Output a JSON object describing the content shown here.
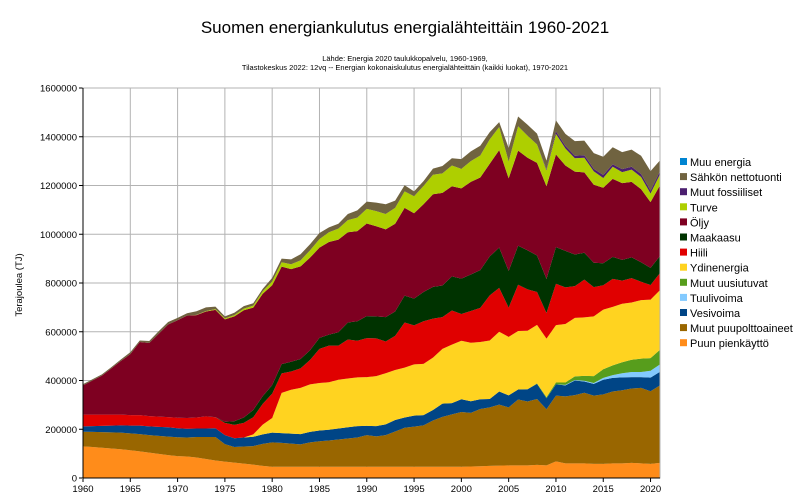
{
  "chart_data": {
    "type": "area",
    "stacked": true,
    "title": "Suomen energiankulutus energialähteittäin 1960-2021",
    "subtitle_lines": [
      "Lähde: Energia 2020 taulukkopalvelu, 1960-1969,",
      "Tilastokeskus 2022: 12vq -- Energian kokonaiskulutus energialähteittäin (kaikki luokat), 1970-2021"
    ],
    "xlabel": "",
    "ylabel": "Terajoulea (TJ)",
    "xlim": [
      1960,
      2021
    ],
    "ylim": [
      0,
      1600000
    ],
    "x_ticks": [
      1960,
      1965,
      1970,
      1975,
      1980,
      1985,
      1990,
      1995,
      2000,
      2005,
      2010,
      2015,
      2020
    ],
    "y_ticks": [
      "0",
      "200000",
      "400000",
      "600000",
      "800000",
      "1000000",
      "1200000",
      "1400000",
      "1600000"
    ],
    "grid": true,
    "legend_position": "right",
    "x": [
      1960,
      1961,
      1962,
      1963,
      1964,
      1965,
      1966,
      1967,
      1968,
      1969,
      1970,
      1971,
      1972,
      1973,
      1974,
      1975,
      1976,
      1977,
      1978,
      1979,
      1980,
      1981,
      1982,
      1983,
      1984,
      1985,
      1986,
      1987,
      1988,
      1989,
      1990,
      1991,
      1992,
      1993,
      1994,
      1995,
      1996,
      1997,
      1998,
      1999,
      2000,
      2001,
      2002,
      2003,
      2004,
      2005,
      2006,
      2007,
      2008,
      2009,
      2010,
      2011,
      2012,
      2013,
      2014,
      2015,
      2016,
      2017,
      2018,
      2019,
      2020,
      2021
    ],
    "series": [
      {
        "name": "Puun pienkäyttö",
        "color": "#ff8c1a",
        "values": [
          130000,
          127000,
          124000,
          121000,
          118000,
          114000,
          109000,
          104000,
          99000,
          94000,
          90000,
          88000,
          84000,
          78000,
          72000,
          67000,
          63000,
          59000,
          55000,
          50000,
          46000,
          46000,
          46000,
          46000,
          46000,
          46000,
          46000,
          46000,
          46000,
          46000,
          46000,
          46000,
          46000,
          46000,
          46000,
          46000,
          46000,
          46000,
          46000,
          46000,
          46000,
          47000,
          48000,
          50000,
          51000,
          52000,
          52000,
          52000,
          54000,
          52000,
          68000,
          60000,
          60000,
          60000,
          58000,
          58000,
          60000,
          60000,
          62000,
          60000,
          58000,
          62000
        ]
      },
      {
        "name": "Muut puupolttoaineet",
        "color": "#996600",
        "values": [
          60000,
          62000,
          64000,
          66000,
          68000,
          69000,
          71000,
          72000,
          74000,
          76000,
          77000,
          78000,
          84000,
          90000,
          96000,
          72000,
          64000,
          70000,
          76000,
          90000,
          100000,
          98000,
          95000,
          92000,
          100000,
          105000,
          108000,
          112000,
          116000,
          120000,
          130000,
          125000,
          130000,
          145000,
          160000,
          165000,
          170000,
          190000,
          205000,
          215000,
          225000,
          220000,
          235000,
          240000,
          250000,
          238000,
          270000,
          262000,
          270000,
          230000,
          270000,
          275000,
          280000,
          290000,
          280000,
          285000,
          295000,
          300000,
          305000,
          310000,
          298000,
          318000
        ]
      },
      {
        "name": "Vesivoima",
        "color": "#004586",
        "values": [
          22000,
          24000,
          26000,
          28000,
          30000,
          32000,
          35000,
          36000,
          37000,
          38000,
          37000,
          36000,
          35000,
          35000,
          36000,
          37000,
          36000,
          37000,
          38000,
          39000,
          40000,
          40000,
          41000,
          42000,
          43000,
          44000,
          44000,
          45000,
          46000,
          47000,
          38000,
          42000,
          44000,
          47000,
          42000,
          45000,
          42000,
          43000,
          54000,
          46000,
          52000,
          48000,
          40000,
          34000,
          54000,
          49000,
          41000,
          50000,
          62000,
          45000,
          46000,
          45000,
          60000,
          46000,
          48000,
          60000,
          56000,
          53000,
          47000,
          44000,
          56000,
          56000
        ]
      },
      {
        "name": "Tuulivoima",
        "color": "#83caff",
        "values": [
          0,
          0,
          0,
          0,
          0,
          0,
          0,
          0,
          0,
          0,
          0,
          0,
          0,
          0,
          0,
          0,
          0,
          0,
          0,
          0,
          0,
          0,
          0,
          0,
          0,
          0,
          0,
          0,
          0,
          0,
          0,
          0,
          0,
          0,
          0,
          0,
          0,
          0,
          0,
          0,
          0,
          0,
          0,
          0,
          0,
          0,
          0,
          0,
          0,
          0,
          0,
          2000,
          2000,
          3000,
          4000,
          8000,
          11000,
          17000,
          21000,
          21000,
          28000,
          30000
        ]
      },
      {
        "name": "Muut uusiutuvat",
        "color": "#579d1c",
        "values": [
          0,
          0,
          0,
          0,
          0,
          0,
          0,
          0,
          0,
          0,
          0,
          0,
          0,
          0,
          0,
          0,
          0,
          0,
          0,
          0,
          0,
          0,
          0,
          0,
          0,
          0,
          0,
          0,
          0,
          0,
          0,
          0,
          0,
          0,
          0,
          0,
          0,
          0,
          0,
          0,
          0,
          0,
          0,
          0,
          0,
          0,
          0,
          0,
          2000,
          5000,
          8000,
          10000,
          15000,
          20000,
          28000,
          35000,
          40000,
          45000,
          50000,
          55000,
          52000,
          60000
        ]
      },
      {
        "name": "Ydinenergia",
        "color": "#ffd320",
        "values": [
          0,
          0,
          0,
          0,
          0,
          0,
          0,
          0,
          0,
          0,
          0,
          0,
          0,
          0,
          0,
          0,
          0,
          0,
          10000,
          40000,
          60000,
          165000,
          180000,
          190000,
          195000,
          195000,
          195000,
          200000,
          200000,
          200000,
          200000,
          205000,
          210000,
          205000,
          205000,
          210000,
          210000,
          215000,
          225000,
          240000,
          240000,
          240000,
          235000,
          240000,
          245000,
          240000,
          240000,
          240000,
          240000,
          240000,
          235000,
          240000,
          240000,
          240000,
          245000,
          245000,
          240000,
          240000,
          235000,
          240000,
          240000,
          245000
        ]
      },
      {
        "name": "Hiili",
        "color": "#e00000",
        "values": [
          48000,
          47000,
          46000,
          45000,
          44000,
          43000,
          43000,
          42000,
          42000,
          42000,
          43000,
          44000,
          45000,
          50000,
          45000,
          50000,
          55000,
          60000,
          70000,
          85000,
          100000,
          80000,
          75000,
          80000,
          100000,
          140000,
          150000,
          140000,
          160000,
          150000,
          160000,
          155000,
          130000,
          140000,
          185000,
          160000,
          175000,
          160000,
          130000,
          140000,
          110000,
          130000,
          140000,
          185000,
          180000,
          120000,
          190000,
          170000,
          135000,
          105000,
          170000,
          150000,
          130000,
          155000,
          120000,
          100000,
          115000,
          95000,
          100000,
          75000,
          60000,
          70000
        ]
      },
      {
        "name": "Maakaasu",
        "color": "#003300",
        "values": [
          0,
          0,
          0,
          0,
          0,
          0,
          0,
          0,
          0,
          0,
          0,
          0,
          0,
          0,
          1000,
          5000,
          15000,
          22000,
          30000,
          32000,
          35000,
          38000,
          40000,
          38000,
          40000,
          45000,
          45000,
          55000,
          70000,
          80000,
          90000,
          90000,
          100000,
          100000,
          110000,
          110000,
          120000,
          130000,
          130000,
          140000,
          145000,
          150000,
          155000,
          160000,
          165000,
          150000,
          160000,
          160000,
          150000,
          140000,
          150000,
          150000,
          130000,
          110000,
          100000,
          90000,
          90000,
          85000,
          85000,
          80000,
          70000,
          70000
        ]
      },
      {
        "name": "Öljy",
        "color": "#7e0021",
        "values": [
          120000,
          140000,
          160000,
          190000,
          220000,
          250000,
          300000,
          300000,
          340000,
          380000,
          400000,
          420000,
          420000,
          430000,
          440000,
          420000,
          430000,
          440000,
          420000,
          420000,
          410000,
          400000,
          380000,
          380000,
          380000,
          370000,
          380000,
          380000,
          370000,
          370000,
          380000,
          370000,
          360000,
          360000,
          360000,
          350000,
          360000,
          380000,
          380000,
          370000,
          370000,
          380000,
          380000,
          380000,
          400000,
          380000,
          390000,
          380000,
          380000,
          380000,
          380000,
          350000,
          340000,
          330000,
          320000,
          310000,
          320000,
          315000,
          310000,
          300000,
          270000,
          290000
        ]
      },
      {
        "name": "Turve",
        "color": "#aecf00",
        "values": [
          0,
          0,
          0,
          0,
          0,
          0,
          0,
          0,
          0,
          0,
          0,
          0,
          1000,
          2000,
          3000,
          4000,
          5000,
          7000,
          8000,
          10000,
          15000,
          18000,
          20000,
          25000,
          30000,
          35000,
          40000,
          45000,
          50000,
          55000,
          60000,
          62000,
          63000,
          65000,
          68000,
          70000,
          75000,
          80000,
          80000,
          85000,
          80000,
          85000,
          90000,
          100000,
          95000,
          70000,
          100000,
          90000,
          75000,
          65000,
          85000,
          70000,
          55000,
          60000,
          55000,
          40000,
          50000,
          45000,
          50000,
          50000,
          35000,
          45000
        ]
      },
      {
        "name": "Muut fossiiliset",
        "color": "#4b1f6f",
        "values": [
          0,
          0,
          0,
          0,
          0,
          0,
          0,
          0,
          0,
          0,
          0,
          0,
          0,
          0,
          0,
          0,
          0,
          0,
          0,
          0,
          0,
          0,
          0,
          0,
          0,
          0,
          0,
          0,
          0,
          0,
          0,
          0,
          0,
          0,
          0,
          0,
          0,
          0,
          0,
          0,
          0,
          0,
          0,
          0,
          0,
          0,
          0,
          0,
          0,
          5000,
          10000,
          10000,
          10000,
          10000,
          10000,
          12000,
          10000,
          12000,
          12000,
          12000,
          12000,
          12000
        ]
      },
      {
        "name": "Sähkön nettotuonti",
        "color": "#706340",
        "values": [
          5000,
          5000,
          5000,
          5000,
          6000,
          8000,
          6000,
          8000,
          10000,
          10000,
          10000,
          10000,
          15000,
          15000,
          10000,
          8000,
          10000,
          10000,
          10000,
          10000,
          15000,
          15000,
          20000,
          25000,
          25000,
          25000,
          20000,
          20000,
          25000,
          30000,
          30000,
          35000,
          40000,
          30000,
          25000,
          20000,
          20000,
          25000,
          30000,
          30000,
          40000,
          40000,
          40000,
          30000,
          20000,
          55000,
          40000,
          45000,
          45000,
          35000,
          45000,
          50000,
          60000,
          60000,
          65000,
          75000,
          70000,
          70000,
          70000,
          75000,
          80000,
          45000
        ]
      },
      {
        "name": "Muu energia",
        "color": "#0084d1",
        "values": [
          0,
          0,
          0,
          0,
          0,
          0,
          0,
          0,
          0,
          0,
          0,
          0,
          0,
          0,
          0,
          0,
          0,
          0,
          0,
          0,
          0,
          0,
          0,
          0,
          0,
          0,
          0,
          0,
          0,
          0,
          0,
          0,
          0,
          0,
          0,
          0,
          0,
          0,
          0,
          0,
          0,
          0,
          0,
          0,
          0,
          0,
          0,
          0,
          0,
          0,
          0,
          0,
          0,
          0,
          0,
          0,
          0,
          0,
          0,
          0,
          0,
          0
        ]
      }
    ]
  }
}
